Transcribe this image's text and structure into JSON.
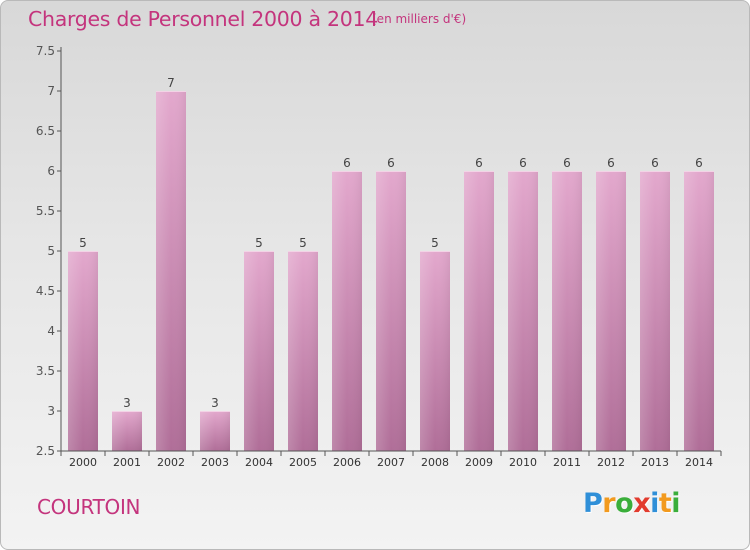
{
  "chart_data": {
    "type": "bar",
    "title": "Charges de Personnel 2000 à 2014",
    "subtitle": "(en milliers d'€)",
    "categories": [
      "2000",
      "2001",
      "2002",
      "2003",
      "2004",
      "2005",
      "2006",
      "2007",
      "2008",
      "2009",
      "2010",
      "2011",
      "2012",
      "2013",
      "2014"
    ],
    "values": [
      5,
      3,
      7,
      3,
      5,
      5,
      6,
      6,
      5,
      6,
      6,
      6,
      6,
      6,
      6
    ],
    "ylim": [
      2.5,
      7.5
    ],
    "yticks": [
      "2.5",
      "3",
      "3.5",
      "4",
      "4.5",
      "5",
      "5.5",
      "6",
      "6.5",
      "7",
      "7.5"
    ],
    "xlabel": "",
    "ylabel": "",
    "grid": false,
    "bar_color_top": "#e3a8cd",
    "bar_color_bottom": "#b06e98"
  },
  "footer": {
    "commune": "COURTOIN",
    "logo_letters": [
      {
        "ch": "P",
        "color": "#2f8fd8"
      },
      {
        "ch": "r",
        "color": "#f29a1e"
      },
      {
        "ch": "o",
        "color": "#3aae3a"
      },
      {
        "ch": "x",
        "color": "#e23b2e"
      },
      {
        "ch": "i",
        "color": "#2f8fd8"
      },
      {
        "ch": "t",
        "color": "#f29a1e"
      },
      {
        "ch": "i",
        "color": "#3aae3a"
      }
    ]
  }
}
